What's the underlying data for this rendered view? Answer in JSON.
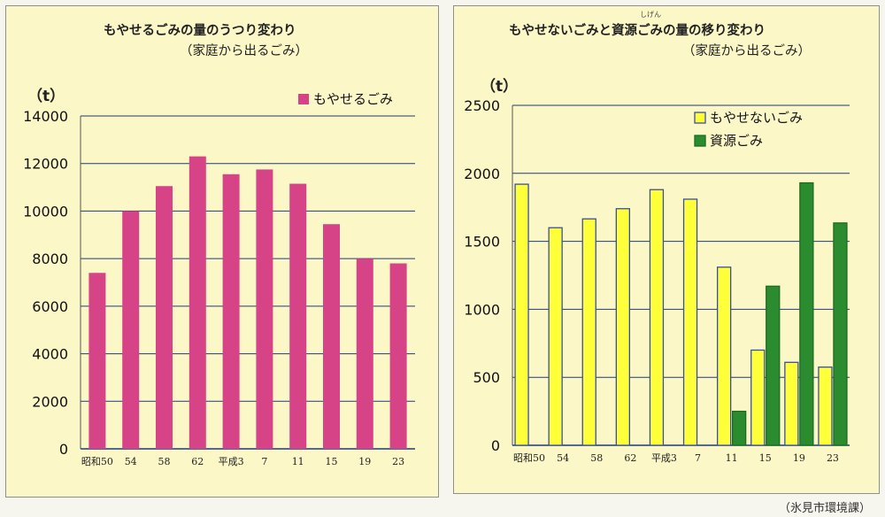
{
  "credit": "（氷見市環境課）",
  "chart_data": [
    {
      "type": "bar",
      "title": "もやせるごみの量のうつり変わり",
      "subtitle": "（家庭から出るごみ）",
      "unit": "（t）",
      "categories": [
        "昭和50",
        "54",
        "58",
        "62",
        "平成3",
        "7",
        "11",
        "15",
        "19",
        "23"
      ],
      "series": [
        {
          "name": "もやせるごみ",
          "color": "#d64487",
          "values": [
            7400,
            10000,
            11050,
            12300,
            11550,
            11750,
            11150,
            9450,
            8000,
            7800
          ]
        }
      ],
      "yticks": [
        0,
        2000,
        4000,
        6000,
        8000,
        10000,
        12000,
        14000
      ],
      "ylim": [
        0,
        14000
      ],
      "grid": true,
      "legend": "top-right"
    },
    {
      "type": "bar",
      "title": "もやせないごみと資源ごみの量の移り変わり",
      "title_ruby": "しげん",
      "subtitle": "（家庭から出るごみ）",
      "unit": "（t）",
      "categories": [
        "昭和50",
        "54",
        "58",
        "62",
        "平成3",
        "7",
        "11",
        "15",
        "19",
        "23"
      ],
      "series": [
        {
          "name": "もやせないごみ",
          "color": "#ffff3a",
          "stroke": "#3a4fa0",
          "values": [
            1920,
            1600,
            1665,
            1740,
            1880,
            1810,
            1310,
            700,
            610,
            575
          ]
        },
        {
          "name": "資源ごみ",
          "color": "#2a8c2e",
          "stroke": "#1d6b22",
          "values": [
            null,
            null,
            null,
            null,
            null,
            null,
            250,
            1170,
            1930,
            1635
          ]
        }
      ],
      "yticks": [
        0,
        500,
        1000,
        1500,
        2000,
        2500
      ],
      "ylim": [
        0,
        2500
      ],
      "grid": true,
      "legend": "top-right"
    }
  ]
}
